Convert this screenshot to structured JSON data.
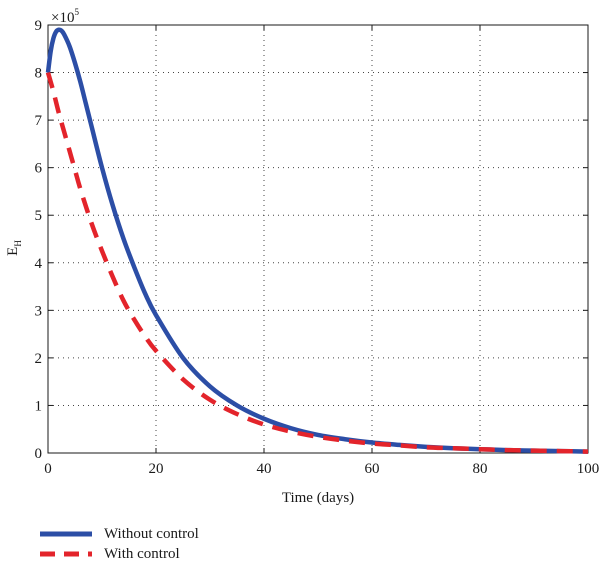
{
  "chart_data": {
    "type": "line",
    "xlabel": "Time (days)",
    "ylabel_main": "E",
    "ylabel_sub": "H",
    "y_multiplier_base": "×10",
    "y_multiplier_exp": "5",
    "xlim": [
      0,
      100
    ],
    "ylim": [
      0,
      9
    ],
    "x_ticks": [
      0,
      20,
      40,
      60,
      80,
      100
    ],
    "y_ticks": [
      0,
      1,
      2,
      3,
      4,
      5,
      6,
      7,
      8,
      9
    ],
    "grid": true,
    "legend_position": "bottom-left, outside plot",
    "series": [
      {
        "name": "Without control",
        "color": "#2c4ea6",
        "dash": "solid",
        "x": [
          0,
          0.5,
          1,
          1.5,
          2,
          2.5,
          3,
          4,
          5,
          6,
          7,
          8,
          10,
          12,
          14,
          16,
          18,
          20,
          25,
          30,
          35,
          40,
          45,
          50,
          55,
          60,
          65,
          70,
          75,
          80,
          85,
          90,
          95,
          100
        ],
        "y": [
          8.0,
          8.45,
          8.72,
          8.86,
          8.9,
          8.88,
          8.8,
          8.55,
          8.2,
          7.8,
          7.35,
          6.9,
          6.0,
          5.2,
          4.5,
          3.9,
          3.35,
          2.9,
          2.0,
          1.4,
          1.0,
          0.72,
          0.52,
          0.38,
          0.29,
          0.22,
          0.17,
          0.13,
          0.1,
          0.08,
          0.06,
          0.05,
          0.04,
          0.03
        ]
      },
      {
        "name": "With control",
        "color": "#e3242b",
        "dash": "dashed",
        "x": [
          0,
          1,
          2,
          3,
          4,
          5,
          6,
          8,
          10,
          12,
          14,
          16,
          18,
          20,
          25,
          30,
          35,
          40,
          45,
          50,
          55,
          60,
          65,
          70,
          75,
          80,
          85,
          90,
          95,
          100
        ],
        "y": [
          8.0,
          7.6,
          7.15,
          6.75,
          6.35,
          5.95,
          5.55,
          4.85,
          4.25,
          3.7,
          3.2,
          2.8,
          2.45,
          2.15,
          1.55,
          1.12,
          0.82,
          0.6,
          0.45,
          0.34,
          0.26,
          0.2,
          0.16,
          0.12,
          0.1,
          0.08,
          0.06,
          0.05,
          0.04,
          0.03
        ]
      }
    ]
  }
}
